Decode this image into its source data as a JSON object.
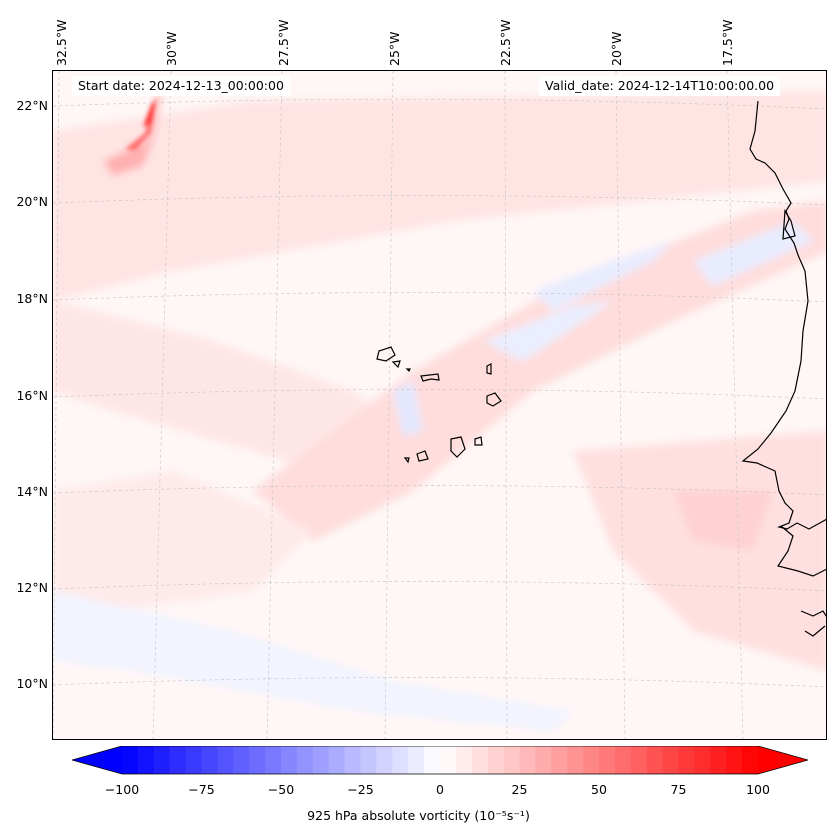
{
  "map": {
    "start_label": "Start date: 2024-12-13_00:00:00",
    "valid_label": "Valid_date: 2024-12-14T10:00:00.00",
    "lon_labels": [
      "32.5°W",
      "30°W",
      "27.5°W",
      "25°W",
      "22.5°W",
      "20°W",
      "17.5°W"
    ],
    "lat_labels": [
      "22°N",
      "20°N",
      "18°N",
      "16°N",
      "14°N",
      "12°N",
      "10°N"
    ],
    "coast_color": "#000000",
    "grid_color": "#c8c8c8"
  },
  "colorbar": {
    "title": "925 hPa absolute vorticity (10⁻⁵s⁻¹)",
    "ticks": [
      "−100",
      "−75",
      "−50",
      "−25",
      "0",
      "25",
      "50",
      "75",
      "100"
    ],
    "min": -100,
    "max": 100,
    "min_color": "#0000ff",
    "mid_color": "#ffffff",
    "max_color": "#ff0000"
  }
}
